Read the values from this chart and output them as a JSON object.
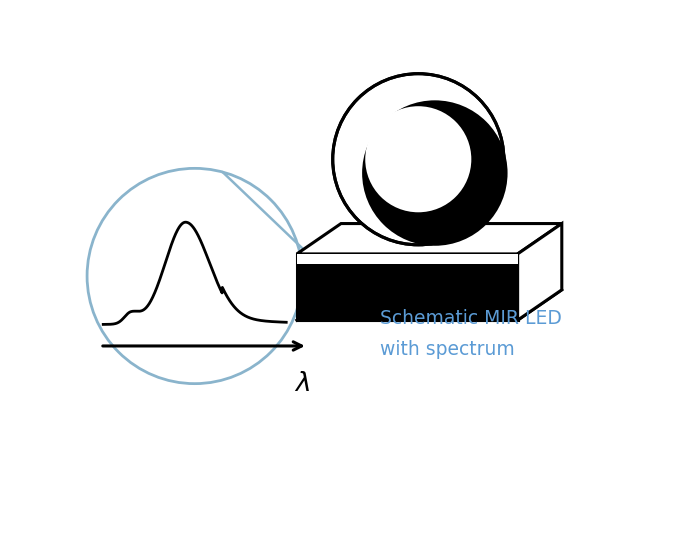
{
  "background_color": "#ffffff",
  "circle_color": "#8ab4cc",
  "led_color": "#000000",
  "text_label": "Schematic MIR LED\nwith spectrum",
  "text_color": "#5b9bd5",
  "text_fontsize": 13.5,
  "figsize": [
    6.82,
    5.52
  ],
  "dpi": 100
}
